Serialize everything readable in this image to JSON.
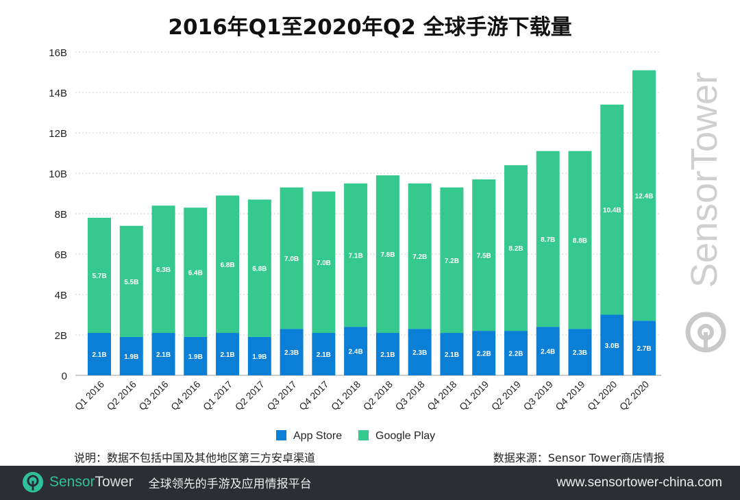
{
  "title": "2016年Q1至2020年Q2 全球手游下载量",
  "chart_data": {
    "type": "bar",
    "stacked": true,
    "title": "2016年Q1至2020年Q2 全球手游下载量",
    "categories": [
      "Q1 2016",
      "Q2 2016",
      "Q3 2016",
      "Q4 2016",
      "Q1 2017",
      "Q2 2017",
      "Q3 2017",
      "Q4 2017",
      "Q1 2018",
      "Q2 2018",
      "Q3 2018",
      "Q4 2018",
      "Q1 2019",
      "Q2 2019",
      "Q3 2019",
      "Q4 2019",
      "Q1 2020",
      "Q2 2020"
    ],
    "series": [
      {
        "name": "App Store",
        "color": "#0b7fd6",
        "values": [
          2.1,
          1.9,
          2.1,
          1.9,
          2.1,
          1.9,
          2.3,
          2.1,
          2.4,
          2.1,
          2.3,
          2.1,
          2.2,
          2.2,
          2.4,
          2.3,
          3.0,
          2.7
        ]
      },
      {
        "name": "Google Play",
        "color": "#36c98f",
        "values": [
          5.7,
          5.5,
          6.3,
          6.4,
          6.8,
          6.8,
          7.0,
          7.0,
          7.1,
          7.8,
          7.2,
          7.2,
          7.5,
          8.2,
          8.7,
          8.8,
          10.4,
          12.4
        ]
      }
    ],
    "value_suffix": "B",
    "yticks": [
      "0",
      "2B",
      "4B",
      "6B",
      "8B",
      "10B",
      "12B",
      "14B",
      "16B"
    ],
    "ylim": [
      0,
      16
    ],
    "grid": true,
    "legend": "bottom"
  },
  "footnote": "说明：数据不包括中国及其他地区第三方安卓渠道",
  "source": "数据来源：Sensor Tower商店情报",
  "watermark": "SensorTower",
  "footer": {
    "brand_a": "Sensor",
    "brand_b": "Tower",
    "slogan": "全球领先的手游及应用情报平台",
    "url": "www.sensortower-china.com",
    "brand_color": "#2fc29a",
    "background": "#2b2e33"
  }
}
